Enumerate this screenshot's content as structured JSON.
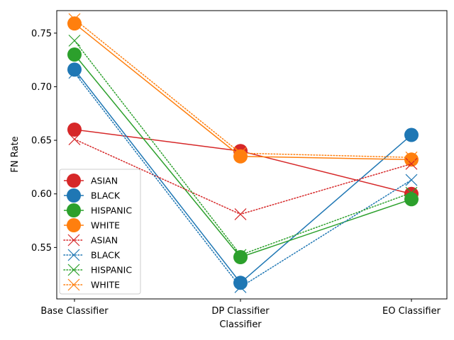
{
  "chart_data": {
    "type": "line",
    "title": "",
    "xlabel": "Classifier",
    "ylabel": "FN Rate",
    "categories": [
      "Base Classifier",
      "DP Classifier",
      "EO Classifier"
    ],
    "ylim": [
      0.502,
      0.771
    ],
    "yticks": [
      0.55,
      0.6,
      0.65,
      0.7,
      0.75
    ],
    "ytick_labels": [
      "0.55",
      "0.60",
      "0.65",
      "0.70",
      "0.75"
    ],
    "grid": false,
    "legend_position": "lower-left",
    "series": [
      {
        "name": "ASIAN",
        "style": "solid",
        "marker": "circle",
        "color": "#d62728",
        "values": [
          0.66,
          0.64,
          0.6
        ]
      },
      {
        "name": "BLACK",
        "style": "solid",
        "marker": "circle",
        "color": "#1f77b4",
        "values": [
          0.716,
          0.517,
          0.655
        ]
      },
      {
        "name": "HISPANIC",
        "style": "solid",
        "marker": "circle",
        "color": "#2ca02c",
        "values": [
          0.73,
          0.541,
          0.595
        ]
      },
      {
        "name": "WHITE",
        "style": "solid",
        "marker": "circle",
        "color": "#ff7f0e",
        "values": [
          0.759,
          0.635,
          0.632
        ]
      },
      {
        "name": "ASIAN",
        "style": "dotted",
        "marker": "x",
        "color": "#d62728",
        "values": [
          0.651,
          0.581,
          0.628
        ]
      },
      {
        "name": "BLACK",
        "style": "dotted",
        "marker": "x",
        "color": "#1f77b4",
        "values": [
          0.713,
          0.513,
          0.613
        ]
      },
      {
        "name": "HISPANIC",
        "style": "dotted",
        "marker": "x",
        "color": "#2ca02c",
        "values": [
          0.743,
          0.543,
          0.601
        ]
      },
      {
        "name": "WHITE",
        "style": "dotted",
        "marker": "x",
        "color": "#ff7f0e",
        "values": [
          0.763,
          0.638,
          0.634
        ]
      }
    ]
  }
}
